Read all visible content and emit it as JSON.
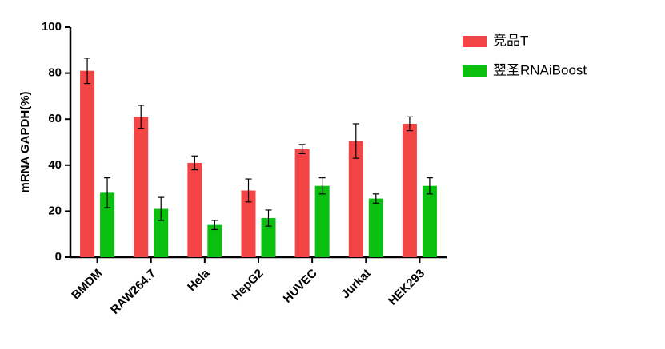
{
  "chart_data": {
    "type": "bar",
    "ylabel": "mRNA GAPDH(%)",
    "categories": [
      "BMDM",
      "RAW264.7",
      "Hela",
      "HepG2",
      "HUVEC",
      "Jurkat",
      "HEK293"
    ],
    "series": [
      {
        "name": "竞品T",
        "color": "#f44546",
        "values": [
          81,
          61,
          41,
          29,
          47,
          50.5,
          58
        ],
        "errors": [
          5.5,
          5,
          3,
          5,
          2,
          7.5,
          3
        ]
      },
      {
        "name": "翌圣RNAiBoost",
        "color": "#0abf10",
        "values": [
          28,
          21,
          14,
          17,
          31,
          25.5,
          31
        ],
        "errors": [
          6.5,
          5,
          2,
          3.5,
          3.5,
          2,
          3.5
        ]
      }
    ],
    "ylim": [
      0,
      100
    ],
    "yticks": [
      0,
      20,
      40,
      60,
      80,
      100
    ],
    "grid": false,
    "legend": "top-right"
  }
}
